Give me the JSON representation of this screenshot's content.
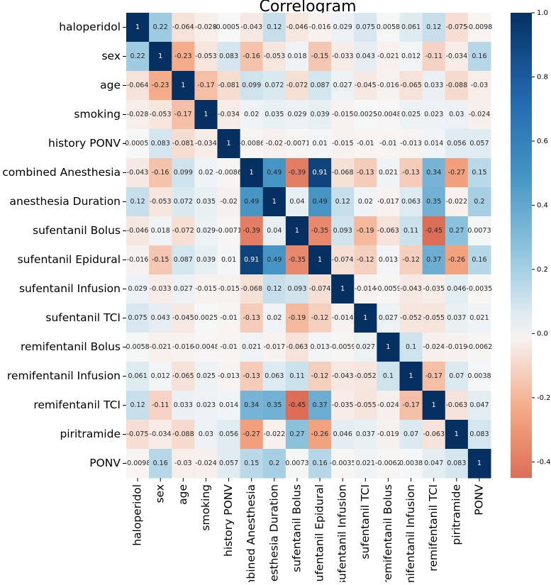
{
  "chart_data": {
    "type": "heatmap",
    "title": "Correlogram",
    "rows": [
      "haloperidol",
      "sex",
      "age",
      "smoking",
      "history PONV",
      "combined Anesthesia",
      "anesthesia Duration",
      "sufentanil Bolus",
      "sufentanil Epidural",
      "sufentanil Infusion",
      "sufentanil TCI",
      "remifentanil Bolus",
      "remifentanil Infusion",
      "remifentanil TCI",
      "piritramide",
      "PONV"
    ],
    "columns": [
      "haloperidol",
      "sex",
      "age",
      "smoking",
      "history PONV",
      "combined Anesthesia",
      "anesthesia Duration",
      "sufentanil Bolus",
      "sufentanil Epidural",
      "sufentanil Infusion",
      "sufentanil TCI",
      "remifentanil Bolus",
      "remifentanil Infusion",
      "remifentanil TCI",
      "piritramide",
      "PONV"
    ],
    "values": [
      [
        1,
        0.22,
        -0.064,
        -0.028,
        -0.00053,
        -0.043,
        0.12,
        -0.046,
        -0.016,
        0.029,
        0.075,
        0.0058,
        0.061,
        0.12,
        -0.075,
        -0.0098
      ],
      [
        0.22,
        1,
        -0.23,
        -0.053,
        0.083,
        -0.16,
        -0.053,
        0.018,
        -0.15,
        -0.033,
        0.043,
        -0.021,
        0.012,
        -0.11,
        -0.034,
        0.16
      ],
      [
        -0.064,
        -0.23,
        1,
        -0.17,
        -0.081,
        0.099,
        0.072,
        -0.072,
        0.087,
        0.027,
        -0.045,
        -0.016,
        -0.065,
        0.033,
        -0.088,
        -0.03
      ],
      [
        -0.028,
        -0.053,
        -0.17,
        1,
        -0.034,
        0.02,
        0.035,
        0.029,
        0.039,
        -0.015,
        0.0025,
        -0.0048,
        0.025,
        0.023,
        0.03,
        -0.024
      ],
      [
        -0.00053,
        0.083,
        -0.081,
        -0.034,
        1,
        -0.0086,
        -0.02,
        -0.0071,
        0.01,
        -0.015,
        -0.01,
        -0.01,
        -0.013,
        0.014,
        0.056,
        0.057
      ],
      [
        -0.043,
        -0.16,
        0.099,
        0.02,
        -0.0086,
        1,
        0.49,
        -0.39,
        0.91,
        -0.068,
        -0.13,
        0.021,
        -0.13,
        0.34,
        -0.27,
        0.15
      ],
      [
        0.12,
        -0.053,
        0.072,
        0.035,
        -0.02,
        0.49,
        1,
        0.04,
        0.49,
        0.12,
        0.02,
        -0.017,
        0.063,
        0.35,
        -0.022,
        0.2
      ],
      [
        -0.046,
        0.018,
        -0.072,
        0.029,
        -0.0071,
        -0.39,
        0.04,
        1,
        -0.35,
        0.093,
        -0.19,
        -0.063,
        0.11,
        -0.45,
        0.27,
        0.0073
      ],
      [
        -0.016,
        -0.15,
        0.087,
        0.039,
        0.01,
        0.91,
        0.49,
        -0.35,
        1,
        -0.074,
        -0.12,
        0.013,
        -0.12,
        0.37,
        -0.26,
        0.16
      ],
      [
        0.029,
        -0.033,
        0.027,
        -0.015,
        -0.015,
        -0.068,
        0.12,
        0.093,
        -0.074,
        1,
        -0.014,
        -0.0059,
        -0.043,
        -0.035,
        0.046,
        -0.0035
      ],
      [
        0.075,
        0.043,
        -0.045,
        0.0025,
        -0.01,
        -0.13,
        0.02,
        -0.19,
        -0.12,
        -0.014,
        1,
        0.027,
        -0.052,
        -0.055,
        0.037,
        0.021
      ],
      [
        0.0058,
        -0.021,
        -0.016,
        -0.0048,
        -0.01,
        0.021,
        -0.017,
        -0.063,
        0.013,
        -0.0059,
        0.027,
        1,
        0.1,
        -0.024,
        -0.019,
        -0.0062
      ],
      [
        0.061,
        0.012,
        -0.065,
        0.025,
        -0.013,
        -0.13,
        0.063,
        0.11,
        -0.12,
        -0.043,
        -0.052,
        0.1,
        1,
        -0.17,
        0.07,
        0.0038
      ],
      [
        0.12,
        -0.11,
        0.033,
        0.023,
        0.014,
        0.34,
        0.35,
        -0.45,
        0.37,
        -0.035,
        -0.055,
        -0.024,
        -0.17,
        1,
        -0.063,
        0.047
      ],
      [
        -0.075,
        -0.034,
        -0.088,
        0.03,
        0.056,
        -0.27,
        -0.022,
        0.27,
        -0.26,
        0.046,
        0.037,
        -0.019,
        0.07,
        -0.063,
        1,
        0.083
      ],
      [
        -0.0098,
        0.16,
        -0.03,
        -0.024,
        0.057,
        0.15,
        0.2,
        0.0073,
        0.16,
        -0.0035,
        0.021,
        -0.0062,
        0.0038,
        0.047,
        0.083,
        1
      ]
    ],
    "zlim": [
      -0.45,
      1
    ],
    "zticks": [
      -0.4,
      -0.2,
      {
        "value": 0,
        "label": "0.0"
      },
      0.2,
      0.4,
      0.6,
      0.8,
      {
        "value": 1,
        "label": "1.0"
      }
    ],
    "colormap": "RdBu_r"
  }
}
